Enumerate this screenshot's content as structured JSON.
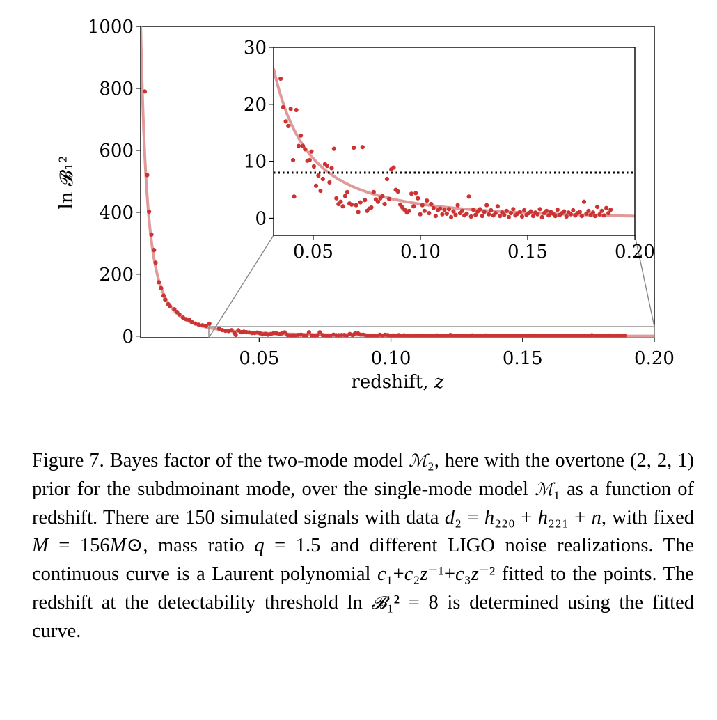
{
  "chart_data": [
    {
      "id": "main",
      "type": "scatter",
      "xlabel_text": "redshift, ",
      "xlabel_var": "z",
      "ylabel": "ln 𝓑₁²",
      "xlim": [
        0.005,
        0.2
      ],
      "ylim": [
        -5,
        1000
      ],
      "xticks": [
        0.05,
        0.1,
        0.15,
        0.2
      ],
      "xtick_labels": [
        "0.05",
        "0.10",
        "0.15",
        "0.20"
      ],
      "yticks": [
        0,
        200,
        400,
        600,
        800,
        1000
      ],
      "ytick_labels": [
        "0",
        "200",
        "400",
        "600",
        "800",
        "1000"
      ],
      "points_color": "#cc3333",
      "fit_color": "#e09a9a",
      "fit": {
        "form": "c1 + c2 z^-1 + c3 z^-2",
        "c1": -0.5,
        "c2": 0.05,
        "c3": 0.025
      },
      "points": [
        [
          0.0066,
          790
        ],
        [
          0.0075,
          520
        ],
        [
          0.0082,
          402
        ],
        [
          0.0091,
          328
        ],
        [
          0.0101,
          278
        ],
        [
          0.0107,
          237
        ],
        [
          0.0119,
          174
        ],
        [
          0.0128,
          155
        ],
        [
          0.0137,
          131
        ],
        [
          0.0143,
          118
        ],
        [
          0.0155,
          103
        ],
        [
          0.0161,
          97
        ],
        [
          0.0178,
          87
        ],
        [
          0.0188,
          78
        ],
        [
          0.0197,
          70
        ],
        [
          0.0211,
          60
        ],
        [
          0.0222,
          55
        ],
        [
          0.0235,
          52
        ],
        [
          0.0245,
          45
        ],
        [
          0.0258,
          41
        ],
        [
          0.0271,
          37
        ],
        [
          0.0285,
          35
        ],
        [
          0.0298,
          33
        ],
        [
          0.0311,
          40
        ]
      ]
    },
    {
      "id": "inset",
      "type": "scatter",
      "xlim": [
        0.0315,
        0.2
      ],
      "ylim": [
        -3,
        30
      ],
      "xticks": [
        0.05,
        0.1,
        0.15,
        0.2
      ],
      "xtick_labels": [
        "0.05",
        "0.10",
        "0.15",
        "0.20"
      ],
      "yticks": [
        0,
        10,
        20,
        30
      ],
      "ytick_labels": [
        "0",
        "10",
        "20",
        "30"
      ],
      "threshold": 8,
      "points": [
        [
          0.0348,
          24.5
        ],
        [
          0.036,
          19.5
        ],
        [
          0.0372,
          17
        ],
        [
          0.0384,
          16.2
        ],
        [
          0.0395,
          19.2
        ],
        [
          0.0406,
          10.2
        ],
        [
          0.0411,
          3.8
        ],
        [
          0.0421,
          19
        ],
        [
          0.0432,
          12.7
        ],
        [
          0.0442,
          14.5
        ],
        [
          0.0452,
          12.7
        ],
        [
          0.0462,
          12.1
        ],
        [
          0.0473,
          10.1
        ],
        [
          0.0483,
          10.2
        ],
        [
          0.0492,
          11.7
        ],
        [
          0.0503,
          9.1
        ],
        [
          0.0513,
          5.7
        ],
        [
          0.0524,
          7.5
        ],
        [
          0.0534,
          4.8
        ],
        [
          0.0545,
          6.9
        ],
        [
          0.0555,
          9.5
        ],
        [
          0.0565,
          9.2
        ],
        [
          0.0576,
          6.3
        ],
        [
          0.0586,
          8.8
        ],
        [
          0.0597,
          12.2
        ],
        [
          0.0608,
          3.5
        ],
        [
          0.0618,
          2.5
        ],
        [
          0.0628,
          2.9
        ],
        [
          0.0638,
          2.1
        ],
        [
          0.0649,
          3.9
        ],
        [
          0.0659,
          4.6
        ],
        [
          0.0669,
          2.6
        ],
        [
          0.0679,
          2.4
        ],
        [
          0.0689,
          12.4
        ],
        [
          0.07,
          2.3
        ],
        [
          0.071,
          1.1
        ],
        [
          0.072,
          2.8
        ],
        [
          0.073,
          12.5
        ],
        [
          0.0741,
          3.2
        ],
        [
          0.0751,
          1.3
        ],
        [
          0.0761,
          1.7
        ],
        [
          0.0771,
          1.9
        ],
        [
          0.0782,
          4.6
        ],
        [
          0.0792,
          3.3
        ],
        [
          0.0802,
          2.9
        ],
        [
          0.0813,
          3.5
        ],
        [
          0.0823,
          3.9
        ],
        [
          0.0833,
          2.5
        ],
        [
          0.0844,
          6.9
        ],
        [
          0.0854,
          3.4
        ],
        [
          0.0864,
          8.6
        ],
        [
          0.0875,
          8.9
        ],
        [
          0.0885,
          5.0
        ],
        [
          0.0895,
          4.7
        ],
        [
          0.0906,
          2.4
        ],
        [
          0.0916,
          1.9
        ],
        [
          0.0926,
          1.5
        ],
        [
          0.0937,
          1.0
        ],
        [
          0.0947,
          1.3
        ],
        [
          0.0958,
          4.3
        ],
        [
          0.0968,
          2.1
        ],
        [
          0.0978,
          4.4
        ],
        [
          0.0988,
          3.5
        ],
        [
          0.0999,
          0.7
        ],
        [
          0.1009,
          2.3
        ],
        [
          0.1019,
          1.3
        ],
        [
          0.103,
          3.1
        ],
        [
          0.104,
          0.9
        ],
        [
          0.105,
          2.5
        ],
        [
          0.1061,
          1.8
        ],
        [
          0.1071,
          0.4
        ],
        [
          0.1081,
          1.4
        ],
        [
          0.1092,
          1.7
        ],
        [
          0.1102,
          0.7
        ],
        [
          0.1112,
          1.5
        ],
        [
          0.1123,
          0.8
        ],
        [
          0.1133,
          1.6
        ],
        [
          0.1143,
          0.2
        ],
        [
          0.1154,
          1.2
        ],
        [
          0.1164,
          0.6
        ],
        [
          0.1174,
          2.3
        ],
        [
          0.1185,
          0.9
        ],
        [
          0.1195,
          1.3
        ],
        [
          0.1205,
          0.5
        ],
        [
          0.1216,
          0.8
        ],
        [
          0.1226,
          3.8
        ],
        [
          0.1236,
          0.3
        ],
        [
          0.1247,
          1.5
        ],
        [
          0.1257,
          0.6
        ],
        [
          0.1267,
          1.2
        ],
        [
          0.1278,
          1.6
        ],
        [
          0.1288,
          0.4
        ],
        [
          0.1298,
          1.1
        ],
        [
          0.1309,
          2.3
        ],
        [
          0.1319,
          0.7
        ],
        [
          0.1329,
          1.4
        ],
        [
          0.134,
          0.5
        ],
        [
          0.135,
          0.9
        ],
        [
          0.136,
          2.1
        ],
        [
          0.1371,
          0.4
        ],
        [
          0.1381,
          1.0
        ],
        [
          0.1391,
          0.6
        ],
        [
          0.1402,
          1.3
        ],
        [
          0.1412,
          0.2
        ],
        [
          0.1422,
          0.9
        ],
        [
          0.1433,
          1.6
        ],
        [
          0.1443,
          0.5
        ],
        [
          0.1453,
          0.8
        ],
        [
          0.1464,
          1.1
        ],
        [
          0.1474,
          0.3
        ],
        [
          0.1484,
          1.4
        ],
        [
          0.1495,
          0.6
        ],
        [
          0.1505,
          0.9
        ],
        [
          0.1515,
          1.2
        ],
        [
          0.1526,
          0.4
        ],
        [
          0.1536,
          1.0
        ],
        [
          0.1546,
          0.7
        ],
        [
          0.1557,
          1.6
        ],
        [
          0.1567,
          0.2
        ],
        [
          0.1577,
          0.9
        ],
        [
          0.1588,
          1.3
        ],
        [
          0.1598,
          0.5
        ],
        [
          0.1608,
          1.1
        ],
        [
          0.1619,
          0.8
        ],
        [
          0.1629,
          0.4
        ],
        [
          0.1639,
          1.5
        ],
        [
          0.165,
          0.6
        ],
        [
          0.166,
          0.9
        ],
        [
          0.167,
          1.2
        ],
        [
          0.1681,
          0.3
        ],
        [
          0.1691,
          1.0
        ],
        [
          0.1701,
          0.7
        ],
        [
          0.1712,
          1.4
        ],
        [
          0.1722,
          0.5
        ],
        [
          0.1732,
          0.9
        ],
        [
          0.1743,
          1.1
        ],
        [
          0.1753,
          0.4
        ],
        [
          0.1763,
          2.9
        ],
        [
          0.1774,
          0.8
        ],
        [
          0.1784,
          1.3
        ],
        [
          0.1794,
          0.6
        ],
        [
          0.1805,
          1.0
        ],
        [
          0.1815,
          0.4
        ],
        [
          0.1825,
          2.0
        ],
        [
          0.1836,
          0.7
        ],
        [
          0.1846,
          1.3
        ],
        [
          0.1856,
          0.5
        ],
        [
          0.1867,
          1.8
        ],
        [
          0.1877,
          0.9
        ],
        [
          0.1887,
          1.5
        ]
      ]
    }
  ],
  "caption": {
    "lines": [
      {
        "parts": [
          {
            "t": "Figure 7. Bayes factor of the two-mode model "
          },
          {
            "t": "ℳ",
            "c": "cal"
          },
          {
            "t": "₂, here with"
          }
        ]
      },
      {
        "parts": [
          {
            "t": "the overtone (2, 2, 1) prior for the subdmoinant mode, over"
          }
        ]
      },
      {
        "parts": [
          {
            "t": "the single-mode model "
          },
          {
            "t": "ℳ",
            "c": "cal"
          },
          {
            "t": "₁ as a function of redshift.  There"
          }
        ]
      },
      {
        "parts": [
          {
            "t": "are 150 simulated signals with data "
          },
          {
            "t": "d",
            "c": "it"
          },
          {
            "t": "₂ = "
          },
          {
            "t": "h",
            "c": "it"
          },
          {
            "t": "₂₂₀ + "
          },
          {
            "t": "h",
            "c": "it"
          },
          {
            "t": "₂₂₁ + "
          },
          {
            "t": "n",
            "c": "it"
          },
          {
            "t": ","
          }
        ]
      },
      {
        "parts": [
          {
            "t": "with fixed "
          },
          {
            "t": "M",
            "c": "it"
          },
          {
            "t": " = 156"
          },
          {
            "t": "M",
            "c": "it"
          },
          {
            "t": "⊙, mass ratio "
          },
          {
            "t": "q",
            "c": "it"
          },
          {
            "t": " = 1.5 and different"
          }
        ]
      },
      {
        "parts": [
          {
            "t": "LIGO noise realizations.  The continuous curve is a Laurent"
          }
        ]
      },
      {
        "parts": [
          {
            "t": "polynomial "
          },
          {
            "t": "c",
            "c": "it"
          },
          {
            "t": "₁+"
          },
          {
            "t": "c",
            "c": "it"
          },
          {
            "t": "₂"
          },
          {
            "t": "z",
            "c": "it"
          },
          {
            "t": "⁻¹+"
          },
          {
            "t": "c",
            "c": "it"
          },
          {
            "t": "₃"
          },
          {
            "t": "z",
            "c": "it"
          },
          {
            "t": "⁻² fitted to the points. The redshift"
          }
        ]
      },
      {
        "parts": [
          {
            "t": "at the detectability threshold ln "
          },
          {
            "t": "𝓑",
            "c": "cal"
          },
          {
            "t": "₁² = 8 is determined using"
          }
        ]
      },
      {
        "parts": [
          {
            "t": "the fitted curve."
          }
        ]
      }
    ]
  }
}
